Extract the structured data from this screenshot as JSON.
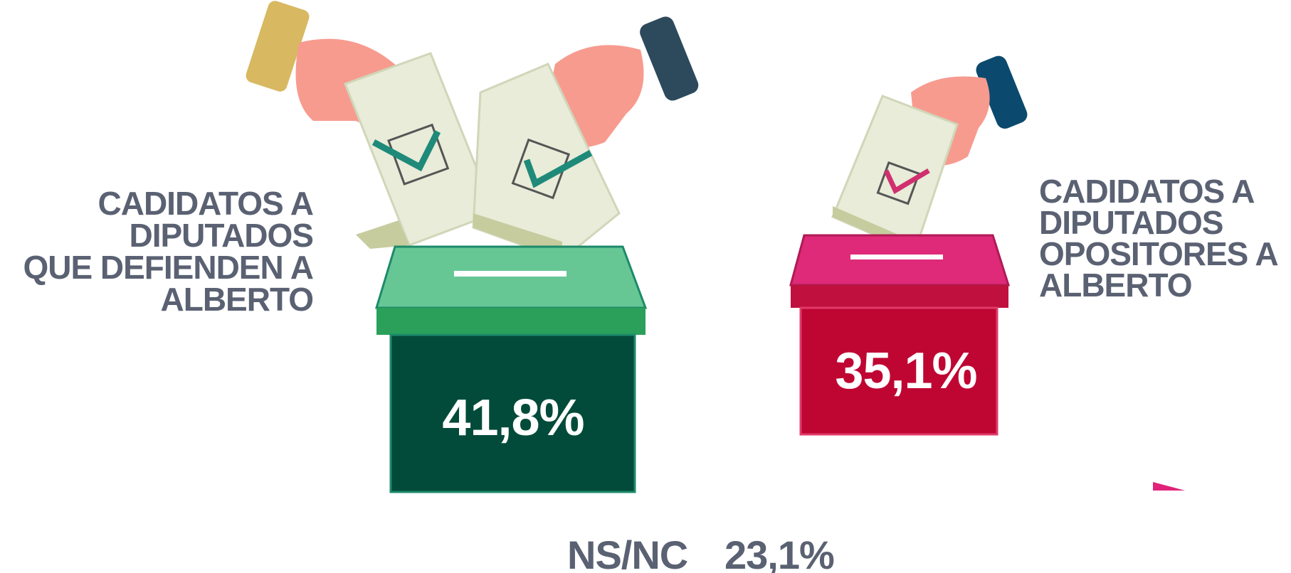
{
  "items": [
    {
      "label": [
        "CADIDATOS A",
        "DIPUTADOS",
        "QUE DEFIENDEN A",
        "ALBERTO"
      ],
      "value": "41,8%"
    },
    {
      "label": [
        "CADIDATOS A",
        "DIPUTADOS",
        "OPOSITORES A",
        "ALBERTO"
      ],
      "value": "35,1%"
    }
  ],
  "other": {
    "label": "NS/NC",
    "value": "23,1%"
  }
}
